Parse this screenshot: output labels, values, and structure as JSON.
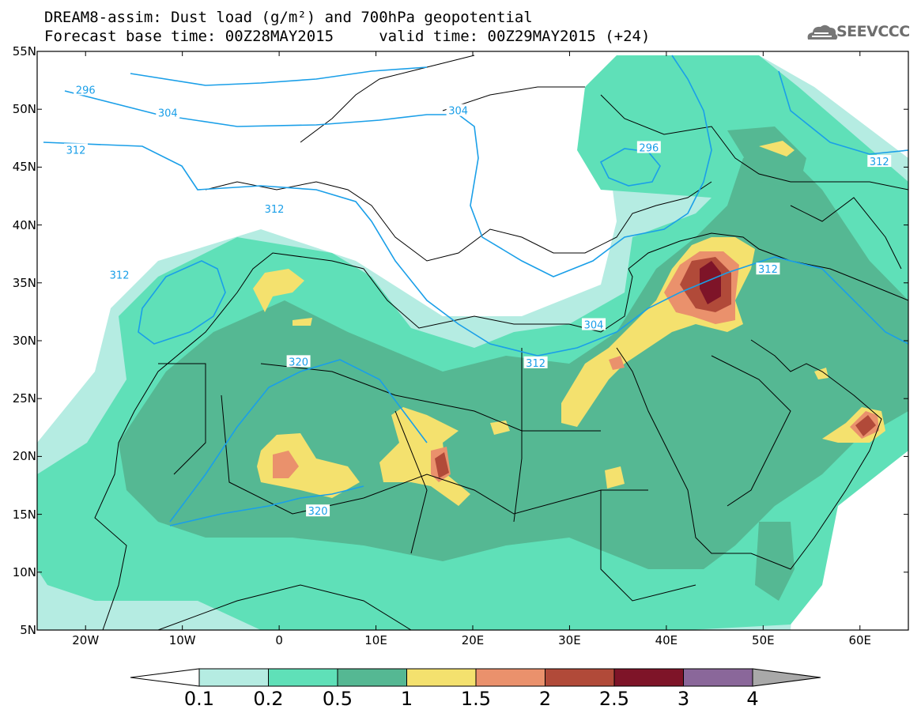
{
  "title_line1": "DREAM8-assim: Dust load (g/m²) and 700hPa geopotential",
  "title_line2": "Forecast base time: 00Z28MAY2015     valid time: 00Z29MAY2015 (+24)",
  "logo_text": "SEEVCCC",
  "map": {
    "lon_range": [
      -25,
      65
    ],
    "lat_range": [
      5,
      55
    ],
    "lat_ticks": [
      {
        "value": 55,
        "label": "55N"
      },
      {
        "value": 50,
        "label": "50N"
      },
      {
        "value": 45,
        "label": "45N"
      },
      {
        "value": 40,
        "label": "40N"
      },
      {
        "value": 35,
        "label": "35N"
      },
      {
        "value": 30,
        "label": "30N"
      },
      {
        "value": 25,
        "label": "25N"
      },
      {
        "value": 20,
        "label": "20N"
      },
      {
        "value": 15,
        "label": "15N"
      },
      {
        "value": 10,
        "label": "10N"
      },
      {
        "value": 5,
        "label": "5N"
      }
    ],
    "lon_ticks": [
      {
        "value": -20,
        "label": "20W"
      },
      {
        "value": -10,
        "label": "10W"
      },
      {
        "value": 0,
        "label": "0"
      },
      {
        "value": 10,
        "label": "10E"
      },
      {
        "value": 20,
        "label": "20E"
      },
      {
        "value": 30,
        "label": "30E"
      },
      {
        "value": 40,
        "label": "40E"
      },
      {
        "value": 50,
        "label": "50E"
      },
      {
        "value": 60,
        "label": "60E"
      }
    ],
    "contour_labels": [
      {
        "text": "296",
        "lon": -20,
        "lat": 51.7
      },
      {
        "text": "304",
        "lon": -11.5,
        "lat": 49.7
      },
      {
        "text": "312",
        "lon": -21,
        "lat": 46.5
      },
      {
        "text": "304",
        "lon": 18.5,
        "lat": 49.9
      },
      {
        "text": "296",
        "lon": 38.2,
        "lat": 46.7
      },
      {
        "text": "312",
        "lon": 62,
        "lat": 45.5
      },
      {
        "text": "312",
        "lon": -0.5,
        "lat": 41.4
      },
      {
        "text": "312",
        "lon": -16.5,
        "lat": 35.7
      },
      {
        "text": "312",
        "lon": 50.5,
        "lat": 36.2
      },
      {
        "text": "304",
        "lon": 32.5,
        "lat": 31.4
      },
      {
        "text": "320",
        "lon": 2,
        "lat": 28.2
      },
      {
        "text": "312",
        "lon": 26.5,
        "lat": 28.1
      },
      {
        "text": "320",
        "lon": 4,
        "lat": 15.3
      }
    ]
  },
  "colorbar": {
    "labels": [
      "0.1",
      "0.2",
      "0.5",
      "1",
      "1.5",
      "2",
      "2.5",
      "3",
      "4"
    ],
    "colors": [
      "#b5ece2",
      "#5fe0b8",
      "#55b893",
      "#f4e16e",
      "#ea916c",
      "#b14a39",
      "#7e1428",
      "#8a679a"
    ],
    "under_color": "#ffffff",
    "over_color": "#a9a9a9"
  }
}
